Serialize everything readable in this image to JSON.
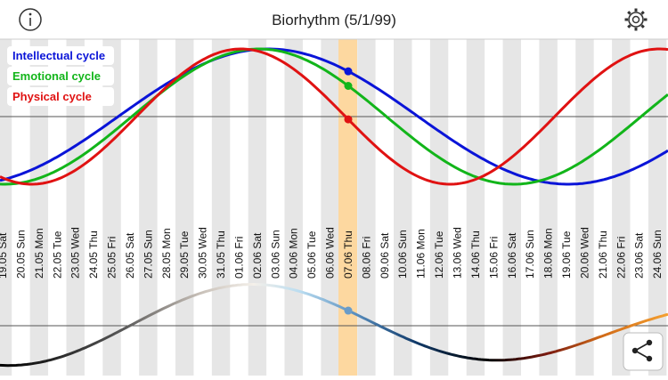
{
  "header": {
    "title": "Biorhythm (5/1/99)"
  },
  "legend": [
    {
      "label": "Intellectual cycle",
      "color": "#0a14d8"
    },
    {
      "label": "Emotional cycle",
      "color": "#12b51a"
    },
    {
      "label": "Physical cycle",
      "color": "#e01212"
    }
  ],
  "dates": [
    "19.05 Sat",
    "20.05 Sun",
    "21.05 Mon",
    "22.05 Tue",
    "23.05 Wed",
    "24.05 Thu",
    "25.05 Fri",
    "26.05 Sat",
    "27.05 Sun",
    "28.05 Mon",
    "29.05 Tue",
    "30.05 Wed",
    "31.05 Thu",
    "01.06 Fri",
    "02.06 Sat",
    "03.06 Sun",
    "04.06 Mon",
    "05.06 Tue",
    "06.06 Wed",
    "07.06 Thu",
    "08.06 Fri",
    "09.06 Sat",
    "10.06 Sun",
    "11.06 Mon",
    "12.06 Tue",
    "13.06 Wed",
    "14.06 Thu",
    "15.06 Fri",
    "16.06 Sat",
    "17.06 Sun",
    "18.06 Mon",
    "19.06 Tue",
    "20.06 Wed",
    "21.06 Thu",
    "22.06 Fri",
    "23.06 Sat",
    "24.06 Sun"
  ]
}
